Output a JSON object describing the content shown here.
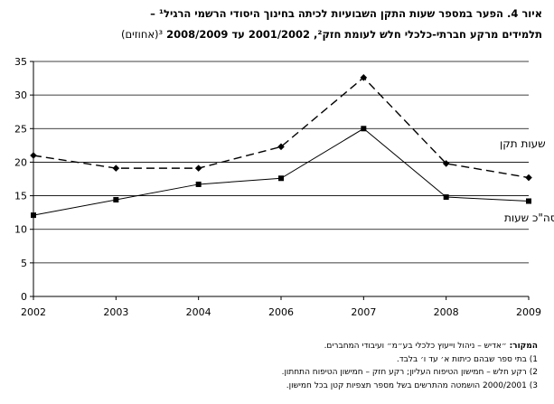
{
  "title": {
    "line1": "איור 4. הפער במספר שעות התקן השבועיות לכיתה בחינוך היסודי הרשמי הרגיל¹ –",
    "line2_bold": "תלמידים מרקע חברתי-כלכלי חלש לעומת חזק², 2001/2002 עד 2008/2009",
    "line2_plain": "³(אחוזים)"
  },
  "chart_data": {
    "type": "line",
    "categories": [
      "2002",
      "2003",
      "2004",
      "2006",
      "2007",
      "2008",
      "2009"
    ],
    "ylim": [
      0,
      35
    ],
    "yticks": [
      "0",
      "5",
      "10",
      "15",
      "20",
      "25",
      "30",
      "35"
    ],
    "grid": true,
    "series": [
      {
        "name": "שעות תקן",
        "values": [
          21.0,
          19.1,
          19.1,
          22.3,
          32.6,
          19.8,
          17.7
        ],
        "style": "dashed",
        "marker": "diamond",
        "color": "#000000"
      },
      {
        "name": "סה\"כ שעות",
        "values": [
          12.1,
          14.4,
          16.7,
          17.6,
          25.0,
          14.8,
          14.2
        ],
        "style": "solid",
        "marker": "square",
        "color": "#000000"
      }
    ]
  },
  "notes": {
    "source_label": "המקור:",
    "source_text": "״אדיש – ניהול וייעוץ כלכלי בע״מ״ ועיבודי המחברים.",
    "note1": "1) בתי ספר שבהם כיתות א׳ עד ו׳ בלבד.",
    "note2": "2) רקע חלש – חמישון הטיפוח העליון; רקע חזק – חמישון הטיפוח התחתון.",
    "note3": "3) 2000/2001 הושמטה מהתרשים בשל מספר תצפיות קטן בכל חמישון."
  }
}
